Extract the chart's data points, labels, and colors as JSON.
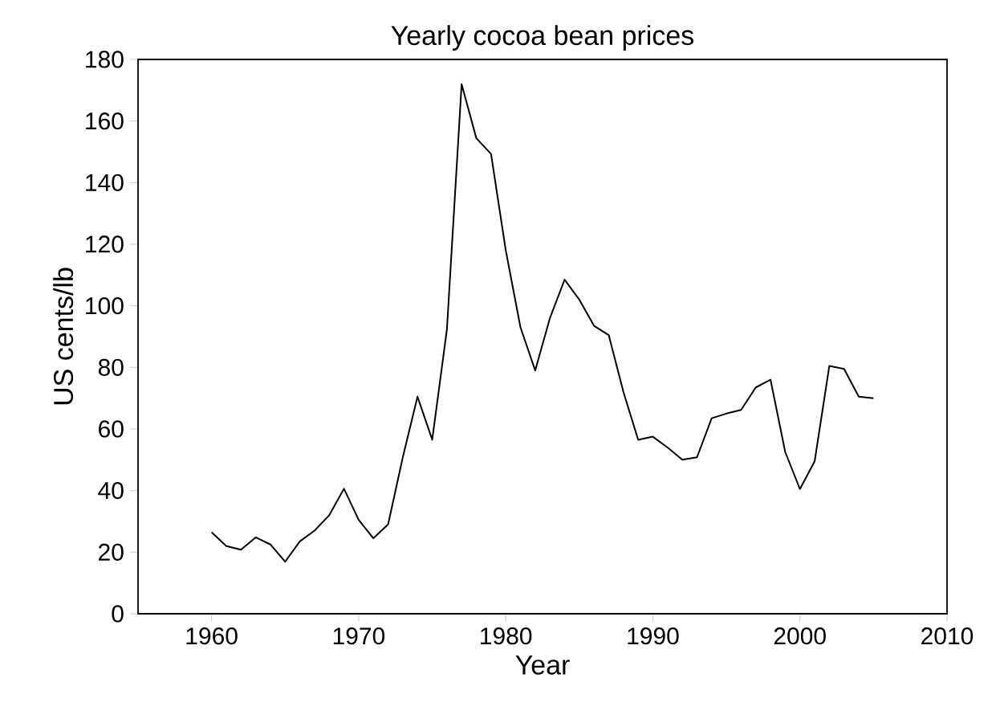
{
  "chart_data": {
    "type": "line",
    "title": "Yearly cocoa bean prices",
    "xlabel": "Year",
    "ylabel": "US cents/lb",
    "x": [
      1960,
      1961,
      1962,
      1963,
      1964,
      1965,
      1966,
      1967,
      1968,
      1969,
      1970,
      1971,
      1972,
      1973,
      1974,
      1975,
      1976,
      1977,
      1978,
      1979,
      1980,
      1981,
      1982,
      1983,
      1984,
      1985,
      1986,
      1987,
      1988,
      1989,
      1990,
      1991,
      1992,
      1993,
      1994,
      1995,
      1996,
      1997,
      1998,
      1999,
      2000,
      2001,
      2002,
      2003,
      2004,
      2005
    ],
    "values": [
      26.5,
      22,
      20.8,
      24.8,
      22.5,
      16.9,
      23.5,
      27,
      32,
      40.6,
      30.5,
      24.5,
      29,
      50.8,
      70.5,
      56.5,
      92.4,
      172,
      154.4,
      149.3,
      118,
      93,
      79,
      96,
      108.5,
      102,
      93.5,
      90.5,
      72,
      56.5,
      57.5,
      54,
      50,
      50.8,
      63.5,
      65,
      66.2,
      73.5,
      76,
      52.5,
      40.5,
      49.5,
      80.5,
      79.5,
      70.5,
      70
    ],
    "color": "#000000",
    "marker": "none",
    "line_style": "solid",
    "xlim": [
      1955,
      2010
    ],
    "ylim": [
      0,
      180
    ],
    "xticks": [
      1960,
      1970,
      1980,
      1990,
      2000,
      2010
    ],
    "yticks": [
      0,
      20,
      40,
      60,
      80,
      100,
      120,
      140,
      160,
      180
    ]
  }
}
